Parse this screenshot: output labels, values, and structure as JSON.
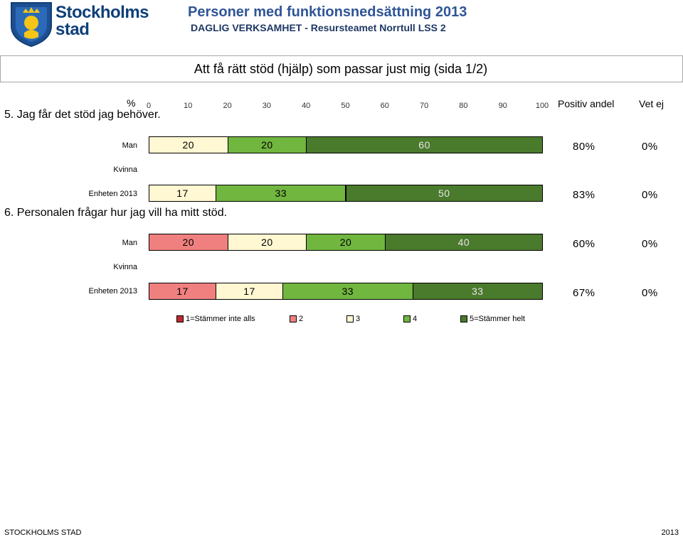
{
  "header": {
    "logo_text": "Stockholms stad",
    "title": "Personer med funktionsnedsättning 2013",
    "subtitle": "DAGLIG VERKSAMHET - Resursteamet Norrtull LSS 2"
  },
  "section_title": "Att få rätt stöd (hjälp) som passar just mig (sida 1/2)",
  "axis": {
    "label": "%",
    "ticks": [
      "0",
      "10",
      "20",
      "30",
      "40",
      "50",
      "60",
      "70",
      "80",
      "90",
      "100"
    ]
  },
  "columns": {
    "positiv": "Positiv andel",
    "vetej": "Vet ej"
  },
  "colors": {
    "c1": "#c0272d",
    "c2": "#f08080",
    "c3": "#fff8d2",
    "c4": "#70b63f",
    "c5": "#4a7a2c"
  },
  "chart_data": {
    "type": "bar",
    "orientation": "horizontal-stacked",
    "xlim": [
      0,
      100
    ],
    "series_names": [
      "1=Stämmer inte alls",
      "2",
      "3",
      "4",
      "5=Stämmer helt"
    ],
    "questions": [
      {
        "label": "5. Jag får det stöd jag behöver.",
        "rows": [
          {
            "label": "Man",
            "values": [
              0,
              0,
              20,
              20,
              60
            ],
            "positiv": "80%",
            "vetej": "0%"
          },
          {
            "label": "Kvinna",
            "values": null,
            "positiv": "",
            "vetej": ""
          },
          {
            "label": "Enheten 2013",
            "values": [
              0,
              0,
              17,
              33,
              50
            ],
            "positiv": "83%",
            "vetej": "0%"
          }
        ]
      },
      {
        "label": "6. Personalen frågar hur jag vill ha mitt stöd.",
        "rows": [
          {
            "label": "Man",
            "values": [
              0,
              20,
              20,
              20,
              40
            ],
            "positiv": "60%",
            "vetej": "0%"
          },
          {
            "label": "Kvinna",
            "values": null,
            "positiv": "",
            "vetej": ""
          },
          {
            "label": "Enheten 2013",
            "values": [
              0,
              17,
              17,
              33,
              33
            ],
            "positiv": "67%",
            "vetej": "0%"
          }
        ]
      }
    ]
  },
  "footer": {
    "left": "STOCKHOLMS STAD",
    "right": "2013"
  }
}
